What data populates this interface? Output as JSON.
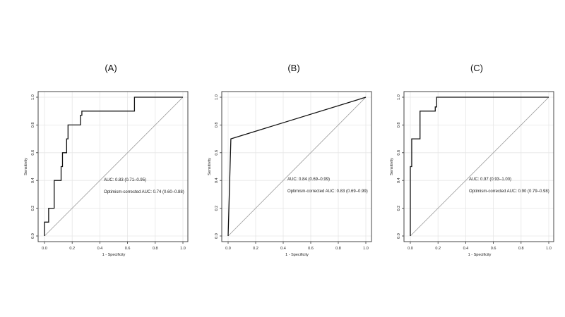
{
  "chart_data": [
    {
      "type": "line",
      "panel_label": "(A)",
      "xlabel": "1 - Specificity",
      "ylabel": "Sensitivity",
      "xlim": [
        0,
        1
      ],
      "ylim": [
        0,
        1
      ],
      "xticks": [
        "0.0",
        "0.2",
        "0.4",
        "0.6",
        "0.8",
        "1.0"
      ],
      "yticks": [
        "0.0",
        "0.2",
        "0.4",
        "0.6",
        "0.8",
        "1.0"
      ],
      "grid": true,
      "reference_line": true,
      "annotations": [
        "AUC: 0.83 (0.71–0.95)",
        "Optimism-corrected AUC: 0.74 (0.60–0.88)"
      ],
      "series": [
        {
          "x": [
            0,
            0,
            0.03,
            0.03,
            0.07,
            0.07,
            0.1,
            0.1,
            0.12,
            0.12,
            0.13,
            0.13,
            0.16,
            0.16,
            0.17,
            0.17,
            0.18,
            0.18,
            0.26,
            0.26,
            0.27,
            0.27,
            0.65,
            0.65,
            1.0
          ],
          "y": [
            0,
            0.1,
            0.1,
            0.2,
            0.2,
            0.4,
            0.4,
            0.4,
            0.4,
            0.5,
            0.5,
            0.6,
            0.6,
            0.7,
            0.7,
            0.8,
            0.8,
            0.8,
            0.8,
            0.87,
            0.87,
            0.9,
            0.9,
            1.0,
            1.0
          ]
        }
      ]
    },
    {
      "type": "line",
      "panel_label": "(B)",
      "xlabel": "1 - Specificity",
      "ylabel": "Sensitivity",
      "xlim": [
        0,
        1
      ],
      "ylim": [
        0,
        1
      ],
      "xticks": [
        "0.0",
        "0.2",
        "0.4",
        "0.6",
        "0.8",
        "1.0"
      ],
      "yticks": [
        "0.0",
        "0.2",
        "0.4",
        "0.6",
        "0.8",
        "1.0"
      ],
      "grid": true,
      "reference_line": true,
      "annotations": [
        "AUC: 0.84 (0.69–0.99)",
        "Optimism-corrected AUC: 0.83 (0.69–0.99)"
      ],
      "series": [
        {
          "x": [
            0,
            0.02,
            1.0
          ],
          "y": [
            0,
            0.7,
            1.0
          ]
        }
      ]
    },
    {
      "type": "line",
      "panel_label": "(C)",
      "xlabel": "1 - Specificity",
      "ylabel": "Sensitivity",
      "xlim": [
        0,
        1
      ],
      "ylim": [
        0,
        1
      ],
      "xticks": [
        "0.0",
        "0.2",
        "0.4",
        "0.6",
        "0.8",
        "1.0"
      ],
      "yticks": [
        "0.0",
        "0.2",
        "0.4",
        "0.6",
        "0.8",
        "1.0"
      ],
      "grid": true,
      "reference_line": true,
      "annotations": [
        "AUC: 0.97 (0.93–1.00)",
        "Optimism-corrected AUC: 0.90 (0.79–0.98)"
      ],
      "series": [
        {
          "x": [
            0,
            0,
            0.01,
            0.01,
            0.07,
            0.07,
            0.18,
            0.18,
            0.19,
            0.19,
            1.0
          ],
          "y": [
            0,
            0.5,
            0.5,
            0.7,
            0.7,
            0.9,
            0.9,
            0.93,
            0.93,
            1.0,
            1.0
          ]
        }
      ]
    }
  ]
}
